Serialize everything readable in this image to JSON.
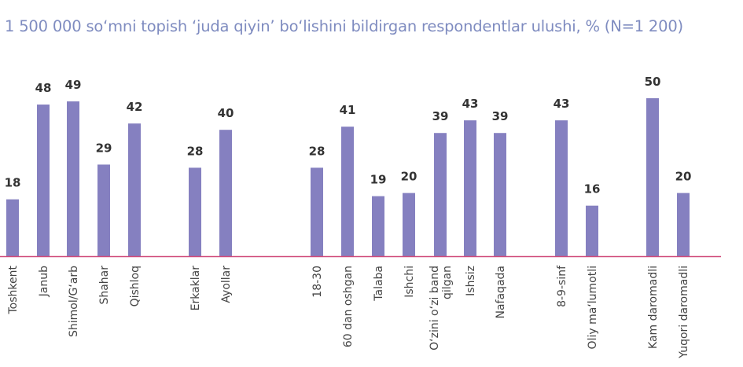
{
  "chart_data": {
    "type": "bar",
    "title": "1 500 000 so‘mni topish ‘juda qiyin’ bo‘lishini bildirgan respondentlar ulushi, % (N=1 200)",
    "xlabel": "",
    "ylabel": "",
    "ylim": [
      0,
      50
    ],
    "grid": false,
    "bar_color": "#8580c0",
    "axis_color": "#d04a7a",
    "groups": [
      {
        "categories": [
          "Toshkent",
          "Janub",
          "Shimol/G‘arb",
          "Shahar",
          "Qishloq"
        ],
        "values": [
          18,
          48,
          49,
          29,
          42
        ]
      },
      {
        "categories": [
          "Erkaklar",
          "Ayollar"
        ],
        "values": [
          28,
          40
        ]
      },
      {
        "categories": [
          "18-30",
          "60 dan oshgan",
          "Talaba",
          "Ishchi",
          "O‘zini o‘zi band qilgan",
          "Ishsiz",
          "Nafaqada"
        ],
        "values": [
          28,
          41,
          19,
          20,
          39,
          43,
          39
        ]
      },
      {
        "categories": [
          "8-9-sinf",
          "Oliy ma‘lumotli"
        ],
        "values": [
          43,
          16
        ]
      },
      {
        "categories": [
          "Kam daromadli",
          "Yuqori daromadli"
        ],
        "values": [
          50,
          20
        ]
      }
    ]
  }
}
